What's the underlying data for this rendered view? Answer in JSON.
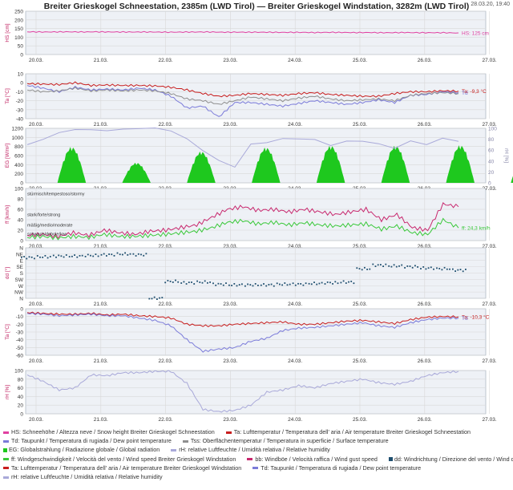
{
  "title": "Breiter Grieskogel Schneestation, 2385m (LWD Tirol) — Breiter Grieskogel Windstation, 3282m (LWD Tirol)",
  "timestamp": "28.03.20, 19:40",
  "colors": {
    "snow": "#e040a0",
    "air_temp": "#c81e1e",
    "dew_point": "#7b7bd9",
    "surface_temp": "#8f8f8f",
    "radiation": "#1ec81e",
    "humidity": "#a9a9d9",
    "wind": "#39c839",
    "gust": "#c8286e",
    "wind_dir": "#1f4f6f",
    "grid": "#d8d8d8",
    "panel_bg": "#eef1f6"
  },
  "chart_data": [
    {
      "type": "line",
      "id": "snow",
      "ylabel": "HS [cm]",
      "ylim": [
        0,
        250
      ],
      "yticks": [
        0,
        50,
        100,
        150,
        200,
        250
      ],
      "xticks": [
        "20.03.",
        "21.03.",
        "22.03.",
        "23.03.",
        "24.03.",
        "25.03.",
        "26.03.",
        "27.03."
      ],
      "series": [
        {
          "name": "HS",
          "color_key": "snow",
          "values": [
            131,
            130,
            131,
            130,
            131,
            130,
            130,
            130,
            129,
            130,
            130,
            129,
            129,
            129,
            128,
            128,
            127,
            128,
            127,
            127,
            126,
            127,
            126,
            126,
            125
          ],
          "end_label": "HS: 125 cm"
        }
      ]
    },
    {
      "type": "line",
      "id": "temp_snow",
      "ylabel": "Ta [°C]",
      "ylim": [
        -40,
        10
      ],
      "yticks": [
        -40,
        -30,
        -20,
        -10,
        0,
        10
      ],
      "xticks": [
        "20.03.",
        "21.03.",
        "22.03.",
        "23.03.",
        "24.03.",
        "25.03.",
        "26.03.",
        "27.03."
      ],
      "series": [
        {
          "name": "Ta",
          "color_key": "air_temp",
          "values": [
            -1,
            -1.5,
            -2,
            0,
            -3,
            -2.5,
            -3,
            -3,
            -3.5,
            -5,
            -8,
            -12,
            -15,
            -14,
            -12,
            -13,
            -14,
            -12,
            -11,
            -13,
            -14,
            -15,
            -15,
            -12,
            -10,
            -10,
            -9,
            -9.3
          ],
          "end_label": "Ta: -9,3 °C"
        },
        {
          "name": "Td",
          "color_key": "dew_point",
          "values": [
            -3,
            -6,
            -10,
            -5,
            -8,
            -7,
            -8,
            -6,
            -8,
            -15,
            -28,
            -26,
            -38,
            -22,
            -22,
            -24,
            -26,
            -23,
            -20,
            -22,
            -24,
            -22,
            -19,
            -22,
            -14,
            -13,
            -10,
            -11
          ],
          "end_label": "Td"
        },
        {
          "name": "Tss",
          "color_key": "surface_temp",
          "values": [
            -8,
            -10,
            -9,
            -6,
            -9,
            -8,
            -9,
            -8,
            -9,
            -12,
            -18,
            -20,
            -24,
            -20,
            -16,
            -18,
            -20,
            -17,
            -15,
            -18,
            -20,
            -19,
            -18,
            -20,
            -14,
            -12,
            -11,
            -12
          ]
        }
      ]
    },
    {
      "type": "area",
      "id": "radiation",
      "ylabel": "EG [W/m²]",
      "ylim": [
        0,
        1200
      ],
      "yticks": [
        0,
        200,
        400,
        600,
        800,
        1000,
        1200
      ],
      "y2label": "rH [%]",
      "y2lim": [
        0,
        100
      ],
      "y2ticks": [
        0,
        20,
        40,
        60,
        80,
        100
      ],
      "xticks": [
        "20.03.",
        "21.03.",
        "22.03.",
        "23.03.",
        "24.03.",
        "25.03.",
        "26.03.",
        "27.03."
      ],
      "days_peak": [
        800,
        450,
        700,
        790,
        830,
        830,
        840,
        650
      ],
      "humidity": [
        70,
        80,
        92,
        98,
        97,
        96,
        98,
        100,
        100,
        96,
        80,
        60,
        40,
        30,
        70,
        75,
        80,
        82,
        78,
        70,
        75,
        78,
        70,
        65,
        75,
        72,
        80,
        78
      ]
    },
    {
      "type": "line",
      "id": "wind",
      "ylabel": "ff [km/h]",
      "ylim": [
        0,
        100
      ],
      "yticks": [
        0,
        20,
        40,
        60,
        80,
        100
      ],
      "annotations": [
        "stürmisch/tempestoso/stormy",
        "stark/forte/strong",
        "mäßig/medio/moderate",
        "schwach/debole/low"
      ],
      "xticks": [
        "20.03.",
        "21.03.",
        "22.03.",
        "23.03.",
        "24.03.",
        "25.03.",
        "26.03.",
        "27.03."
      ],
      "series": [
        {
          "name": "bb",
          "color_key": "gust",
          "values": [
            10,
            12,
            8,
            15,
            10,
            20,
            15,
            12,
            18,
            20,
            25,
            30,
            45,
            60,
            65,
            58,
            60,
            55,
            60,
            55,
            50,
            55,
            60,
            40,
            50,
            25,
            20,
            70,
            65
          ]
        },
        {
          "name": "ff",
          "color_key": "wind",
          "values": [
            6,
            8,
            5,
            8,
            6,
            12,
            8,
            8,
            10,
            12,
            15,
            18,
            25,
            35,
            38,
            32,
            35,
            30,
            34,
            30,
            28,
            30,
            32,
            22,
            28,
            15,
            12,
            40,
            24.3
          ],
          "end_label": "ff: 24,3 km/h"
        }
      ]
    },
    {
      "type": "scatter",
      "id": "wind_dir",
      "ylabel": "dd [°]",
      "yticks": [
        "N",
        "NW",
        "W",
        "SW",
        "S",
        "SE",
        "E",
        "NE",
        "N"
      ],
      "xticks": [
        "20.03.",
        "21.03.",
        "22.03.",
        "23.03.",
        "24.03.",
        "25.03.",
        "26.03.",
        "27.03."
      ],
      "series": [
        {
          "name": "dd",
          "color_key": "wind_dir",
          "values": [
            290,
            295,
            300,
            300,
            305,
            310,
            315,
            310,
            0,
            120,
            110,
            115,
            100,
            95,
            95,
            95,
            100,
            100,
            105,
            110,
            115,
            210,
            235,
            230,
            225,
            215,
            210,
            200
          ]
        }
      ]
    },
    {
      "type": "line",
      "id": "temp_wind",
      "ylabel": "Ta [°C]",
      "ylim": [
        -60,
        0
      ],
      "yticks": [
        -60,
        -50,
        -40,
        -30,
        -20,
        -10,
        0
      ],
      "xticks": [
        "20.03.",
        "21.03.",
        "22.03.",
        "23.03.",
        "24.03.",
        "25.03.",
        "26.03.",
        "27.03."
      ],
      "series": [
        {
          "name": "Ta",
          "color_key": "air_temp",
          "values": [
            -5,
            -6,
            -7,
            -7,
            -6,
            -8,
            -7,
            -9,
            -10,
            -12,
            -20,
            -22,
            -22,
            -20,
            -19,
            -18,
            -17,
            -20,
            -20,
            -18,
            -16,
            -15,
            -17,
            -19,
            -14,
            -11,
            -10,
            -10.3
          ],
          "end_label": "Ta: -10,3 °C"
        },
        {
          "name": "Td",
          "color_key": "dew_point",
          "values": [
            -6,
            -7,
            -9,
            -8,
            -7,
            -9,
            -9,
            -12,
            -15,
            -22,
            -40,
            -55,
            -52,
            -50,
            -42,
            -38,
            -28,
            -25,
            -24,
            -22,
            -20,
            -18,
            -22,
            -24,
            -18,
            -14,
            -12,
            -12
          ],
          "end_label": "Td"
        }
      ]
    },
    {
      "type": "line",
      "id": "humidity_wind",
      "ylabel": "rH [%]",
      "ylim": [
        0,
        100
      ],
      "yticks": [
        0,
        20,
        40,
        60,
        80,
        100
      ],
      "xticks": [
        "20.03.",
        "21.03.",
        "22.03.",
        "23.03.",
        "24.03.",
        "25.03.",
        "26.03.",
        "27.03."
      ],
      "series": [
        {
          "name": "rH",
          "color_key": "humidity",
          "values": [
            90,
            75,
            55,
            60,
            90,
            88,
            95,
            95,
            98,
            98,
            70,
            10,
            5,
            8,
            20,
            50,
            55,
            65,
            60,
            70,
            75,
            80,
            72,
            68,
            75,
            88,
            95,
            98
          ]
        }
      ]
    }
  ],
  "legend": [
    [
      {
        "sym": "line",
        "color_key": "snow",
        "text": "HS: Schneehöhe / Altezza neve / Snow height  Breiter Grieskogel Schneestation"
      },
      {
        "sym": "line",
        "color_key": "air_temp",
        "text": "Ta: Lufttemperatur / Temperatura dell' aria / Air temperature  Breiter Grieskogel Schneestation"
      }
    ],
    [
      {
        "sym": "line",
        "color_key": "dew_point",
        "text": "Td: Taupunkt / Temperatura di rugiada / Dew point temperature"
      },
      {
        "sym": "line",
        "color_key": "surface_temp",
        "text": "Tss: Oberflächentemperatur / Temperatura in superficie / Surface temperature"
      }
    ],
    [
      {
        "sym": "square",
        "color_key": "radiation",
        "text": "EG: Globalstrahlung / Radiazione globale / Global radiation"
      },
      {
        "sym": "line",
        "color_key": "humidity",
        "text": "rH: relative Luftfeuchte / Umidità relativa / Relative humidity"
      }
    ],
    [
      {
        "sym": "line",
        "color_key": "wind",
        "text": "ff: Windgeschwindigkeit / Velocità del vento / Wind speed  Breiter Grieskogel Windstation"
      },
      {
        "sym": "line",
        "color_key": "gust",
        "text": "bb: Windböe / Velocità raffica / Wind gust speed"
      },
      {
        "sym": "square",
        "color_key": "wind_dir",
        "text": "dd: Windrichtung / Direzione del vento / Wind direction"
      }
    ],
    [
      {
        "sym": "line",
        "color_key": "air_temp",
        "text": "Ta: Lufttemperatur / Temperatura dell' aria / Air temperature  Breiter Grieskogel Windstation"
      },
      {
        "sym": "line",
        "color_key": "dew_point",
        "text": "Td: Taupunkt / Temperatura di rugiada / Dew point temperature"
      }
    ],
    [
      {
        "sym": "line",
        "color_key": "humidity",
        "text": "rH: relative Luftfeuchte / Umidità relativa / Relative humidity"
      }
    ]
  ]
}
